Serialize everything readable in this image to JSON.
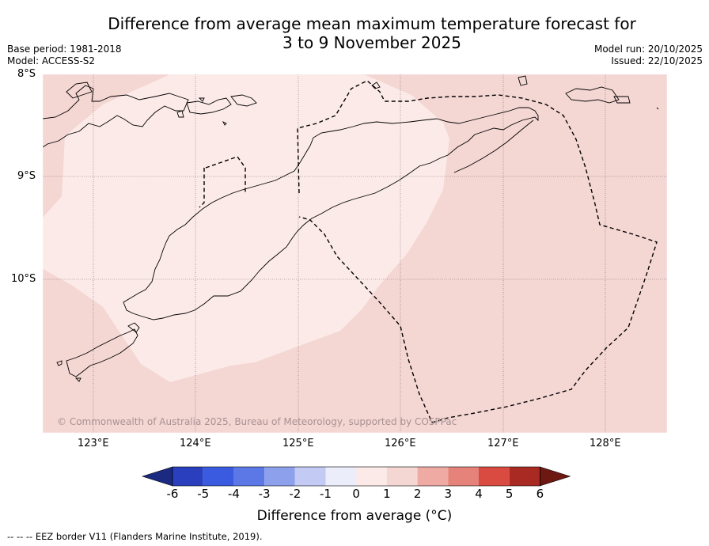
{
  "title": {
    "line1": "Difference from average mean maximum temperature forecast for",
    "line2": "3 to 9 November 2025"
  },
  "meta": {
    "base_period": "Base period: 1981-2018",
    "model": "Model: ACCESS-S2",
    "model_run": "Model run: 20/10/2025",
    "issued": "Issued: 22/10/2025"
  },
  "axes": {
    "lat_labels": [
      "8°S",
      "9°S",
      "10°S"
    ],
    "lon_labels": [
      "123°E",
      "124°E",
      "125°E",
      "126°E",
      "127°E",
      "128°E"
    ]
  },
  "map": {
    "copyright": "© Commonwealth of Australia 2025, Bureau of Meteorology, supported by COSPPac",
    "colors": {
      "anomaly_0_to_1": "#fbeae8",
      "anomaly_1_to_2": "#f4d6d3",
      "land_outline": "#000000",
      "eez_border": "#000000"
    }
  },
  "colorbar": {
    "ticks": [
      "-6",
      "-5",
      "-4",
      "-3",
      "-2",
      "-1",
      "0",
      "1",
      "2",
      "3",
      "4",
      "5",
      "6"
    ],
    "colors": [
      "#1b2a80",
      "#2a3fbd",
      "#3a5be0",
      "#5b78e6",
      "#8da0ec",
      "#c3cbf5",
      "#ebedfb",
      "#fbeae8",
      "#f4d6d3",
      "#eeaaa3",
      "#e5827a",
      "#d94b40",
      "#a92a22",
      "#6e1812"
    ],
    "label": "Difference from average (°C)"
  },
  "footer": "--  --  -- EEZ border V11 (Flanders Marine Institute, 2019)."
}
